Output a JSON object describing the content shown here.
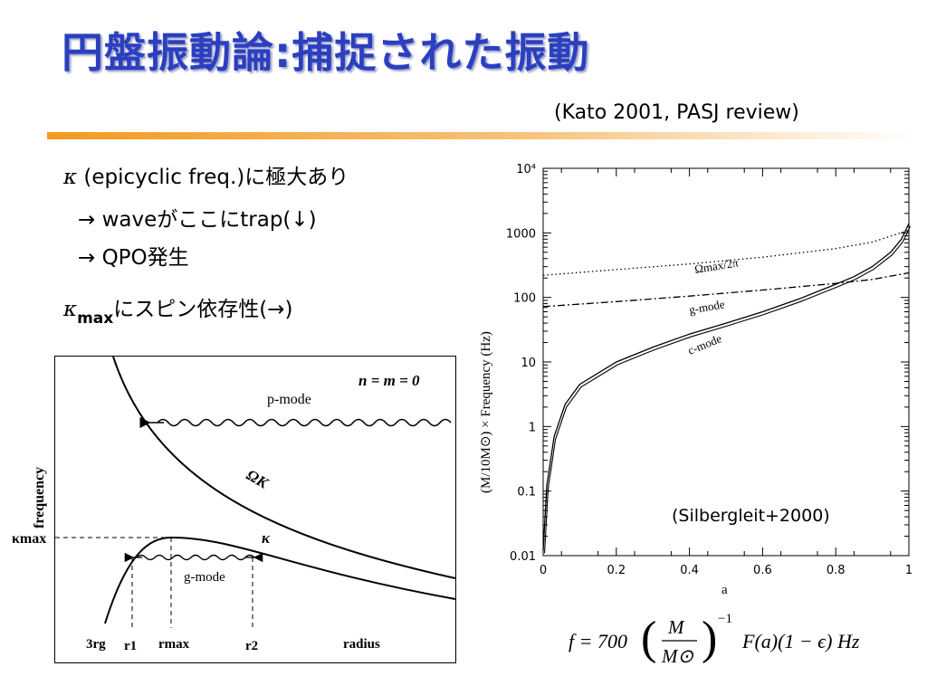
{
  "slide": {
    "title": "円盤振動論:捕捉された振動",
    "citation": "(Kato 2001, PASJ review)",
    "bullets": {
      "b1_symbol": "κ",
      "b1_text": "(epicyclic freq.)に極大あり",
      "b2_text": "→ waveがここにtrap(↓)",
      "b3_text": "→ QPO発生",
      "b4_symbol": "κ",
      "b4_sub": "max",
      "b4_text": "にスピン依存性(→)"
    }
  },
  "left_figure": {
    "label_nm": "n = m = 0",
    "label_pmode": "p-mode",
    "label_omegak": "ΩK",
    "label_kappa": "κ",
    "label_kappamax": "κmax",
    "label_gmode": "g-mode",
    "ylabel": "frequency",
    "xlabel": "radius",
    "tick_3rg": "3rg",
    "tick_r1": "r1",
    "tick_rmax": "rmax",
    "tick_r2": "r2"
  },
  "chart_data": {
    "type": "line",
    "xlabel": "a",
    "ylabel": "(M/10M⊙) × Frequency (Hz)",
    "xlim": [
      0,
      1
    ],
    "ylim": [
      0.01,
      10000
    ],
    "yscale": "log",
    "xticks": [
      "0",
      "0.2",
      "0.4",
      "0.6",
      "0.8",
      "1"
    ],
    "yticks": [
      "0.01",
      "0.1",
      "1",
      "10",
      "100",
      "1000",
      "10⁴"
    ],
    "annotation": "(Silbergleit+2000)",
    "series": [
      {
        "name": "Ωmax/2π",
        "style": "dotted",
        "x": [
          0,
          0.2,
          0.4,
          0.6,
          0.8,
          0.9,
          1.0
        ],
        "y": [
          220,
          270,
          330,
          420,
          570,
          720,
          1100
        ]
      },
      {
        "name": "g-mode",
        "style": "dashdot",
        "x": [
          0,
          0.2,
          0.4,
          0.6,
          0.8,
          0.9,
          1.0
        ],
        "y": [
          72,
          86,
          105,
          130,
          165,
          190,
          240
        ]
      },
      {
        "name": "c-mode",
        "style": "solid",
        "x": [
          0,
          0.01,
          0.03,
          0.06,
          0.1,
          0.2,
          0.3,
          0.4,
          0.5,
          0.6,
          0.7,
          0.8,
          0.85,
          0.9,
          0.95,
          0.98,
          1.0
        ],
        "y": [
          0.012,
          0.12,
          0.7,
          2.2,
          4.5,
          10,
          17,
          27,
          40,
          60,
          95,
          160,
          210,
          300,
          500,
          800,
          1400
        ]
      }
    ]
  },
  "formula": {
    "lead": "f = 700",
    "frac_num": "M",
    "frac_den": "M⊙",
    "exp": "−1",
    "tail": "F(a)(1 − ϵ)  Hz"
  }
}
